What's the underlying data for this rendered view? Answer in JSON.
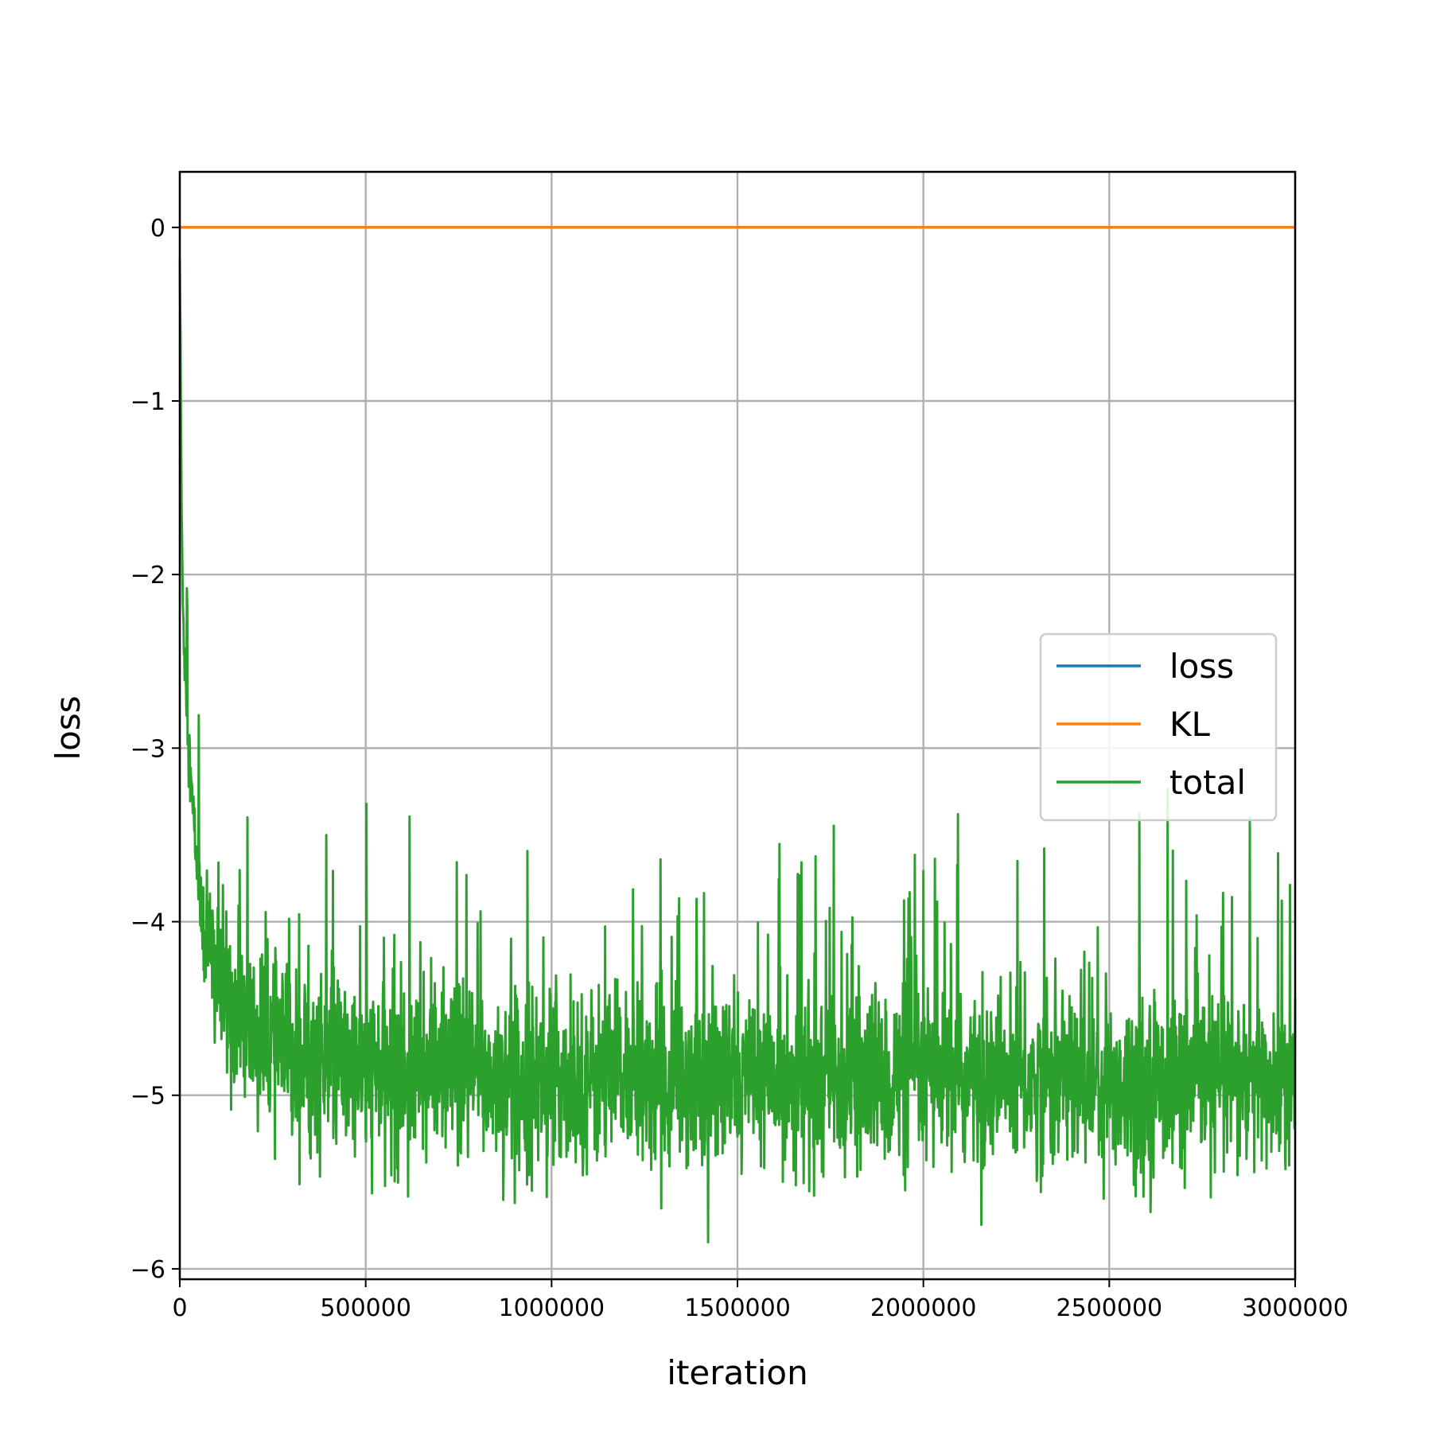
{
  "chart_data": {
    "type": "line",
    "title": "",
    "xlabel": "iteration",
    "ylabel": "loss",
    "xlim": [
      0,
      3000000
    ],
    "ylim": [
      -6.06,
      0.32
    ],
    "grid": true,
    "legend_placement": "center-right",
    "x_ticks": [
      {
        "value": 0,
        "label": "0"
      },
      {
        "value": 500000,
        "label": "500000"
      },
      {
        "value": 1000000,
        "label": "1000000"
      },
      {
        "value": 1500000,
        "label": "1500000"
      },
      {
        "value": 2000000,
        "label": "2000000"
      },
      {
        "value": 2500000,
        "label": "2500000"
      },
      {
        "value": 3000000,
        "label": "3000000"
      }
    ],
    "y_ticks": [
      {
        "value": 0,
        "label": "0"
      },
      {
        "value": -1,
        "label": "−1"
      },
      {
        "value": -2,
        "label": "−2"
      },
      {
        "value": -3,
        "label": "−3"
      },
      {
        "value": -4,
        "label": "−4"
      },
      {
        "value": -5,
        "label": "−5"
      },
      {
        "value": -6,
        "label": "−6"
      }
    ],
    "series": [
      {
        "name": "loss",
        "color": "#1f77b4",
        "x": [
          0,
          3000000
        ],
        "y": [
          0,
          0
        ]
      },
      {
        "name": "KL",
        "color": "#ff7f0e",
        "x": [
          0,
          3000000
        ],
        "y": [
          0,
          0
        ]
      },
      {
        "name": "total",
        "color": "#2ca02c",
        "x": [
          0,
          5000,
          10000,
          20000,
          30000,
          40000,
          50000,
          60000,
          80000,
          100000,
          130000,
          160000,
          200000,
          250000,
          300000,
          400000,
          500000,
          600000,
          750000,
          1000000,
          1250000,
          1500000,
          1750000,
          2000000,
          2250000,
          2500000,
          2750000,
          3000000
        ],
        "y": [
          -0.15,
          -1.7,
          -2.3,
          -2.8,
          -3.2,
          -3.5,
          -3.75,
          -3.95,
          -4.15,
          -4.3,
          -4.45,
          -4.55,
          -4.65,
          -4.72,
          -4.78,
          -4.82,
          -4.85,
          -4.87,
          -4.88,
          -4.9,
          -4.9,
          -4.91,
          -4.91,
          -4.91,
          -4.92,
          -4.92,
          -4.92,
          -4.92
        ],
        "noise_sd": 0.25
      }
    ]
  }
}
